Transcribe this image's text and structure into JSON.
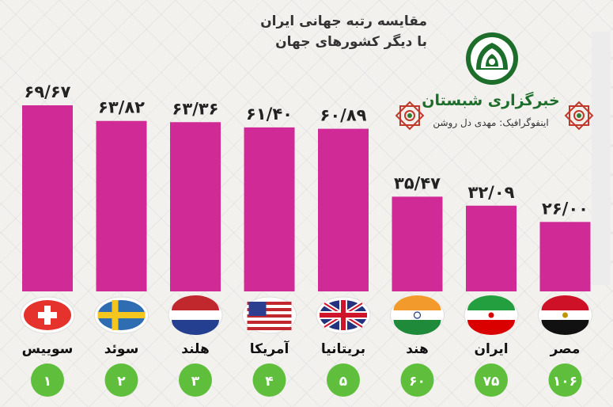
{
  "header": {
    "title_line1": "مقایسه رتبه جهانی ایران",
    "title_line2": "با دیگر کشورهای جهان",
    "agency": "خبرگزاری شبستان",
    "credit": "اینفوگرافیک: مهدی دل روشن"
  },
  "colors": {
    "bar": "#d02a96",
    "brand_green": "#1d6e2a",
    "rank_circle": "#5fbf3d",
    "ornament": "#c0392b"
  },
  "chart_data": {
    "type": "bar",
    "title": "مقایسه رتبه جهانی ایران با دیگر کشورهای جهان",
    "categories": [
      "سوییس",
      "سوئد",
      "هلند",
      "آمریکا",
      "بریتانیا",
      "هند",
      "ایران",
      "مصر"
    ],
    "values": [
      69.67,
      63.82,
      63.36,
      61.4,
      60.89,
      35.47,
      32.09,
      26.0
    ],
    "value_labels": [
      "۶۹/۶۷",
      "۶۳/۸۲",
      "۶۳/۳۶",
      "۶۱/۴۰",
      "۶۰/۸۹",
      "۳۵/۴۷",
      "۳۲/۰۹",
      "۲۶/۰۰"
    ],
    "ranks": [
      "۱",
      "۲",
      "۳",
      "۴",
      "۵",
      "۶۰",
      "۷۵",
      "۱۰۶"
    ],
    "flags": [
      "switzerland-flag",
      "sweden-flag",
      "netherlands-flag",
      "usa-flag",
      "uk-flag",
      "india-flag",
      "iran-flag",
      "egypt-flag"
    ],
    "ylim": [
      0,
      75
    ],
    "grid": false,
    "xlabel": "",
    "ylabel": ""
  }
}
